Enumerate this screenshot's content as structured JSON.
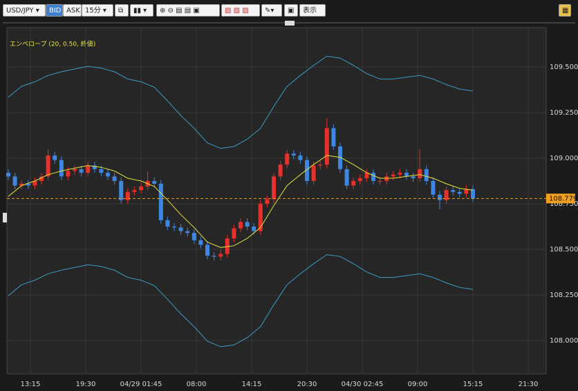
{
  "toolbar": {
    "symbol": "USD/JPY",
    "bid": "BID",
    "ask": "ASK",
    "interval": "15分",
    "display": "表示"
  },
  "chart_data": {
    "type": "candlestick",
    "indicator_label": "エンベロープ (20, 0.50, 終値)",
    "up_color": "#e8302a",
    "down_color": "#3f86e0",
    "grid": true,
    "xlim": [
      -10.625,
      233.125
    ],
    "xticks": [
      {
        "value": 0,
        "label": "13:15"
      },
      {
        "value": 25,
        "label": "19:30"
      },
      {
        "value": 50,
        "label": "04/29 01:45"
      },
      {
        "value": 75,
        "label": "08:00"
      },
      {
        "value": 100,
        "label": "14:15"
      },
      {
        "value": 125,
        "label": "20:30"
      },
      {
        "value": 150,
        "label": "04/30 02:45"
      },
      {
        "value": 175,
        "label": "09:00"
      },
      {
        "value": 200,
        "label": "15:15"
      },
      {
        "value": 225,
        "label": "21:30"
      }
    ],
    "ylim": [
      107.818,
      109.716
    ],
    "yticks": [
      {
        "value": 108,
        "label": "108.000"
      },
      {
        "value": 108.25,
        "label": "108.250"
      },
      {
        "value": 108.5,
        "label": "108.500"
      },
      {
        "value": 108.75,
        "label": "108.750"
      },
      {
        "value": 109,
        "label": "109.000"
      },
      {
        "value": 109.25,
        "label": "109.250"
      },
      {
        "value": 109.5,
        "label": "109.500"
      }
    ],
    "current_price": 108.779,
    "current_price_color": "#f0a020",
    "x": [
      -10,
      -7,
      -4,
      -1,
      2,
      5,
      8,
      11,
      14,
      17,
      20,
      23,
      26,
      29,
      32,
      35,
      38,
      41,
      44,
      47,
      50,
      53,
      56,
      59,
      62,
      65,
      68,
      71,
      74,
      77,
      80,
      83,
      86,
      89,
      92,
      95,
      98,
      101,
      104,
      107,
      110,
      113,
      116,
      119,
      122,
      125,
      128,
      131,
      134,
      137,
      140,
      143,
      146,
      149,
      152,
      155,
      158,
      161,
      164,
      167,
      170,
      173,
      176,
      179,
      182,
      185,
      188,
      191,
      194,
      197,
      200
    ],
    "open": [
      108.92,
      108.9,
      108.85,
      108.86,
      108.85,
      108.875,
      108.9,
      109.015,
      108.99,
      108.9,
      108.93,
      108.94,
      108.92,
      108.96,
      108.94,
      108.92,
      108.9,
      108.875,
      108.77,
      108.815,
      108.825,
      108.845,
      108.875,
      108.86,
      108.66,
      108.625,
      108.62,
      108.6,
      108.59,
      108.55,
      108.525,
      108.465,
      108.46,
      108.475,
      108.56,
      108.615,
      108.65,
      108.625,
      108.6,
      108.75,
      108.775,
      108.9,
      108.965,
      109.025,
      109.015,
      108.99,
      108.875,
      108.96,
      108.965,
      109.165,
      109.065,
      108.94,
      108.85,
      108.875,
      108.89,
      108.92,
      108.875,
      108.875,
      108.9,
      108.91,
      108.92,
      108.9,
      108.89,
      108.94,
      108.875,
      108.8,
      108.77,
      108.825,
      108.815,
      108.805,
      108.83
    ],
    "high": [
      108.94,
      108.92,
      108.88,
      108.88,
      108.895,
      108.92,
      109.05,
      109.035,
      109.01,
      108.95,
      108.96,
      108.96,
      108.98,
      108.98,
      108.96,
      108.94,
      108.92,
      108.895,
      108.835,
      108.845,
      108.865,
      108.93,
      108.895,
      108.88,
      108.68,
      108.645,
      108.64,
      108.62,
      108.61,
      108.57,
      108.545,
      108.485,
      108.495,
      108.58,
      108.635,
      108.67,
      108.67,
      108.645,
      108.77,
      108.795,
      108.92,
      108.985,
      109.045,
      109.045,
      109.035,
      109.01,
      108.98,
      108.985,
      109.22,
      109.185,
      109.085,
      108.96,
      108.895,
      108.91,
      108.94,
      108.94,
      108.895,
      108.92,
      108.93,
      108.94,
      108.94,
      108.92,
      109.05,
      108.96,
      108.895,
      108.82,
      108.845,
      108.845,
      108.835,
      108.85,
      108.85
    ],
    "low": [
      108.88,
      108.83,
      108.83,
      108.83,
      108.83,
      108.855,
      108.88,
      108.97,
      108.88,
      108.88,
      108.91,
      108.9,
      108.9,
      108.92,
      108.9,
      108.88,
      108.855,
      108.75,
      108.75,
      108.795,
      108.805,
      108.825,
      108.84,
      108.64,
      108.605,
      108.6,
      108.58,
      108.57,
      108.53,
      108.505,
      108.445,
      108.44,
      108.44,
      108.455,
      108.54,
      108.595,
      108.605,
      108.58,
      108.58,
      108.73,
      108.755,
      108.88,
      108.945,
      108.995,
      108.97,
      108.855,
      108.855,
      108.94,
      108.945,
      109.045,
      108.92,
      108.83,
      108.83,
      108.855,
      108.87,
      108.855,
      108.855,
      108.855,
      108.88,
      108.89,
      108.88,
      108.87,
      108.87,
      108.855,
      108.78,
      108.72,
      108.75,
      108.795,
      108.785,
      108.785,
      108.76
    ],
    "close": [
      108.9,
      108.85,
      108.86,
      108.85,
      108.875,
      108.9,
      109.015,
      108.99,
      108.9,
      108.93,
      108.94,
      108.92,
      108.96,
      108.94,
      108.92,
      108.9,
      108.875,
      108.77,
      108.815,
      108.825,
      108.845,
      108.875,
      108.86,
      108.66,
      108.625,
      108.62,
      108.6,
      108.59,
      108.55,
      108.525,
      108.465,
      108.46,
      108.475,
      108.56,
      108.615,
      108.65,
      108.625,
      108.6,
      108.75,
      108.775,
      108.9,
      108.965,
      109.025,
      109.015,
      108.99,
      108.875,
      108.96,
      108.965,
      109.165,
      109.065,
      108.94,
      108.85,
      108.875,
      108.89,
      108.92,
      108.875,
      108.875,
      108.9,
      108.91,
      108.92,
      108.9,
      108.89,
      108.94,
      108.875,
      108.8,
      108.77,
      108.825,
      108.815,
      108.805,
      108.83,
      108.779
    ],
    "envelope": {
      "middle_color": "#e4e43a",
      "band_color": "#3a9cc4",
      "x": [
        -10,
        -4,
        2,
        8,
        14,
        20,
        26,
        32,
        38,
        44,
        50,
        56,
        62,
        68,
        74,
        80,
        86,
        92,
        98,
        104,
        110,
        116,
        122,
        128,
        134,
        140,
        146,
        152,
        158,
        164,
        170,
        176,
        182,
        188,
        194,
        200
      ],
      "middle": [
        108.79,
        108.85,
        108.875,
        108.91,
        108.93,
        108.945,
        108.96,
        108.95,
        108.93,
        108.89,
        108.875,
        108.845,
        108.77,
        108.69,
        108.62,
        108.54,
        108.51,
        108.52,
        108.56,
        108.62,
        108.74,
        108.85,
        108.91,
        108.965,
        109.015,
        109.005,
        108.965,
        108.92,
        108.89,
        108.89,
        108.9,
        108.91,
        108.89,
        108.86,
        108.835,
        108.825
      ],
      "upper": [
        109.334,
        109.394,
        109.419,
        109.454,
        109.474,
        109.489,
        109.504,
        109.494,
        109.474,
        109.434,
        109.419,
        109.389,
        109.314,
        109.234,
        109.164,
        109.084,
        109.054,
        109.064,
        109.104,
        109.164,
        109.284,
        109.394,
        109.454,
        109.509,
        109.559,
        109.549,
        109.509,
        109.464,
        109.434,
        109.434,
        109.444,
        109.454,
        109.434,
        109.404,
        109.379,
        109.369
      ],
      "lower": [
        108.246,
        108.306,
        108.331,
        108.366,
        108.386,
        108.401,
        108.416,
        108.406,
        108.386,
        108.346,
        108.331,
        108.301,
        108.226,
        108.146,
        108.076,
        107.996,
        107.966,
        107.976,
        108.016,
        108.076,
        108.196,
        108.306,
        108.366,
        108.421,
        108.471,
        108.461,
        108.421,
        108.376,
        108.346,
        108.346,
        108.356,
        108.366,
        108.346,
        108.316,
        108.291,
        108.281
      ]
    }
  }
}
